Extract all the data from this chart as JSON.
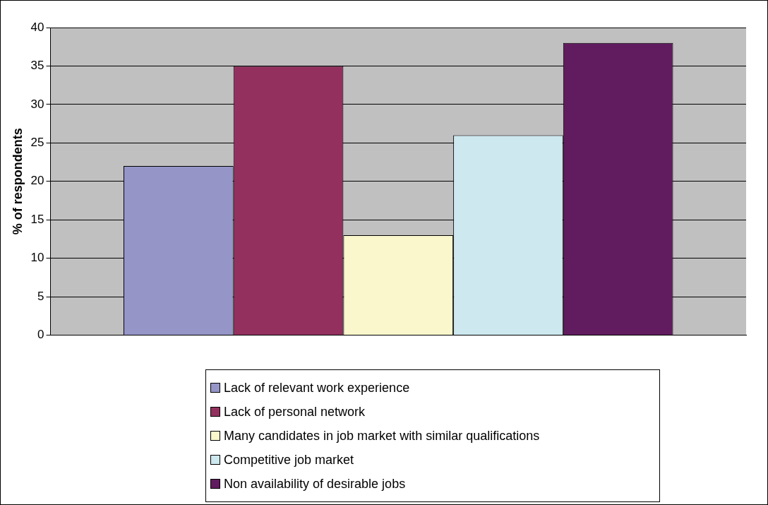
{
  "chart_data": {
    "type": "bar",
    "ylabel": "% of respondents",
    "categories": [
      null
    ],
    "series": [
      {
        "name": "Lack of relevant work experience",
        "color": "#9595c8",
        "values": [
          22
        ]
      },
      {
        "name": "Lack of personal network",
        "color": "#93305e",
        "values": [
          35
        ]
      },
      {
        "name": "Many candidates in job market with similar qualifications",
        "color": "#f9f7cb",
        "values": [
          13
        ]
      },
      {
        "name": "Competitive job market",
        "color": "#cde8ef",
        "values": [
          26
        ]
      },
      {
        "name": "Non availability of desirable jobs",
        "color": "#611c5f",
        "values": [
          38
        ]
      }
    ],
    "ylim": [
      0,
      40
    ],
    "yticks": [
      0,
      5,
      10,
      15,
      20,
      25,
      30,
      35,
      40
    ],
    "grid": "y",
    "legend": "bottom"
  }
}
